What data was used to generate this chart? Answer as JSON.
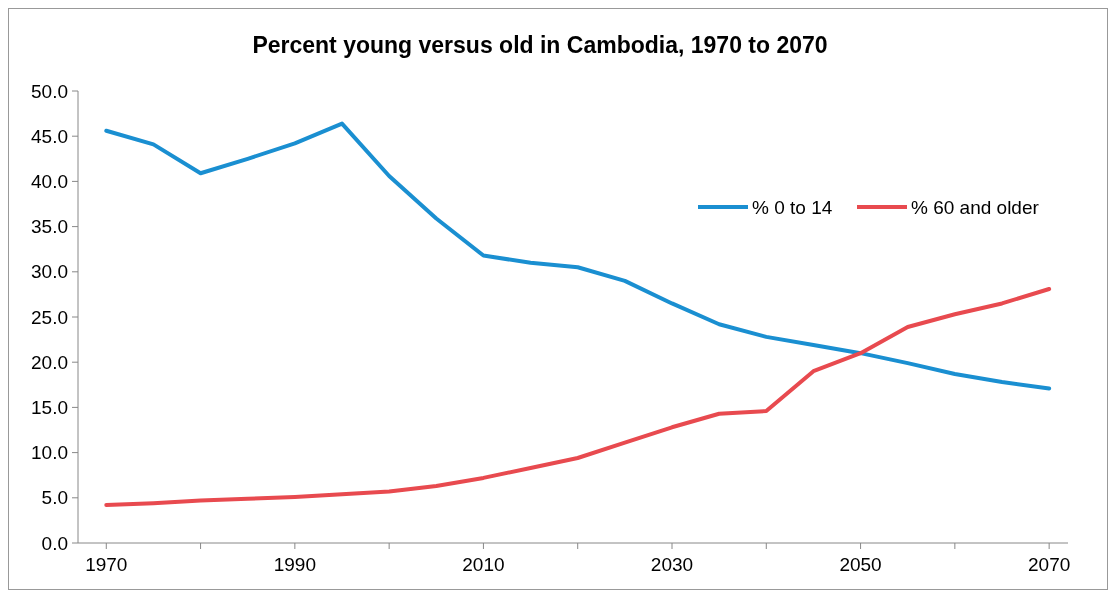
{
  "chart_data": {
    "type": "line",
    "title": "Percent young versus old in Cambodia, 1970 to 2070",
    "x": [
      1970,
      1975,
      1980,
      1985,
      1990,
      1995,
      2000,
      2005,
      2010,
      2015,
      2020,
      2025,
      2030,
      2035,
      2040,
      2045,
      2050,
      2055,
      2060,
      2065,
      2070
    ],
    "series": [
      {
        "name": "% 0 to 14",
        "color": "#1a8fd1",
        "values": [
          45.6,
          44.1,
          40.9,
          42.5,
          44.2,
          46.4,
          40.6,
          35.9,
          31.8,
          31.0,
          30.5,
          29.0,
          26.5,
          24.2,
          22.8,
          21.9,
          21.0,
          19.9,
          18.7,
          17.8,
          17.1
        ]
      },
      {
        "name": "% 60 and older",
        "color": "#e84a4f",
        "values": [
          4.2,
          4.4,
          4.7,
          4.9,
          5.1,
          5.4,
          5.7,
          6.3,
          7.2,
          8.3,
          9.4,
          11.1,
          12.8,
          14.3,
          14.6,
          19.0,
          21.0,
          23.9,
          25.3,
          26.5,
          28.1
        ]
      }
    ],
    "xlim": [
      1967,
      2072
    ],
    "xticks": [
      1970,
      {
        "value": 1980,
        "label": null
      },
      1990,
      {
        "value": 2000,
        "label": null
      },
      2010,
      {
        "value": 2020,
        "label": null
      },
      2030,
      {
        "value": 2040,
        "label": null
      },
      2050,
      {
        "value": 2060,
        "label": null
      },
      2070
    ],
    "ylim": [
      0,
      50
    ],
    "yticks": [
      {
        "value": 0,
        "label": "0.0"
      },
      {
        "value": 5,
        "label": "5.0"
      },
      {
        "value": 10,
        "label": "10.0"
      },
      {
        "value": 15,
        "label": "15.0"
      },
      {
        "value": 20,
        "label": "20.0"
      },
      {
        "value": 25,
        "label": "25.0"
      },
      {
        "value": 30,
        "label": "30.0"
      },
      {
        "value": 35,
        "label": "35.0"
      },
      {
        "value": 40,
        "label": "40.0"
      },
      {
        "value": 45,
        "label": "45.0"
      },
      {
        "value": 50,
        "label": "50.0"
      }
    ],
    "grid": false,
    "legend": "top right",
    "marker": "none",
    "line_style": "solid"
  }
}
